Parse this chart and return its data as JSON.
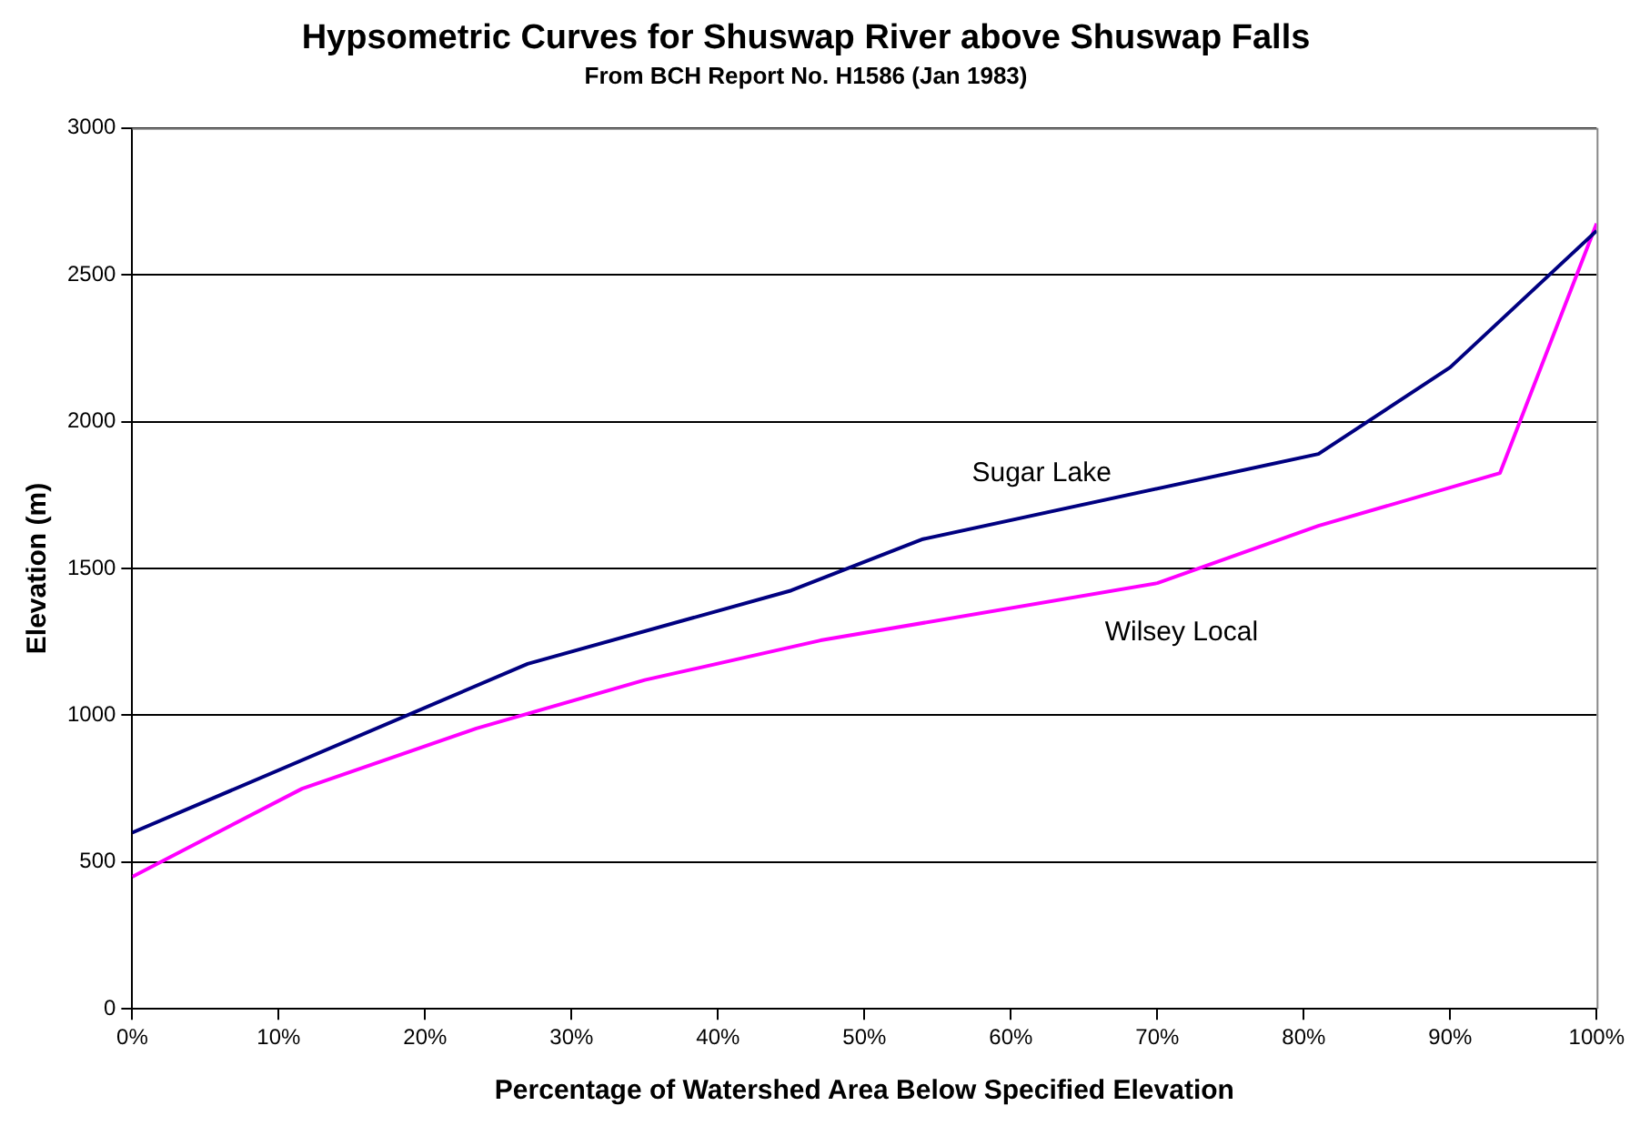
{
  "chart_data": {
    "type": "line",
    "title": "Hypsometric Curves for Shuswap River above Shuswap Falls",
    "subtitle": "From BCH Report No. H1586 (Jan 1983)",
    "xlabel": "Percentage of Watershed Area Below Specified Elevation",
    "ylabel": "Elevation (m)",
    "xlim": [
      0,
      100
    ],
    "xticks": [
      {
        "value": 0,
        "label": "0%"
      },
      {
        "value": 10,
        "label": "10%"
      },
      {
        "value": 20,
        "label": "20%"
      },
      {
        "value": 30,
        "label": "30%"
      },
      {
        "value": 40,
        "label": "40%"
      },
      {
        "value": 50,
        "label": "50%"
      },
      {
        "value": 60,
        "label": "60%"
      },
      {
        "value": 70,
        "label": "70%"
      },
      {
        "value": 80,
        "label": "80%"
      },
      {
        "value": 90,
        "label": "90%"
      },
      {
        "value": 100,
        "label": "100%"
      }
    ],
    "ylim": [
      0,
      3000
    ],
    "yticks": [
      0,
      500,
      1000,
      1500,
      2000,
      2500,
      3000
    ],
    "grid": "y",
    "legend": false,
    "marker": "none",
    "line_style": "solid",
    "series": [
      {
        "name": "Sugar Lake",
        "color": "#000080",
        "x": [
          0,
          27,
          45,
          54,
          81,
          90,
          100
        ],
        "values": [
          600,
          1175,
          1425,
          1600,
          1890,
          2185,
          2650
        ]
      },
      {
        "name": "Wilsey Local",
        "color": "#ff00ff",
        "x": [
          0,
          11.6,
          23.5,
          35,
          47,
          70,
          81,
          93.4,
          100
        ],
        "values": [
          450,
          750,
          955,
          1120,
          1255,
          1450,
          1645,
          1825,
          2675
        ]
      }
    ]
  }
}
